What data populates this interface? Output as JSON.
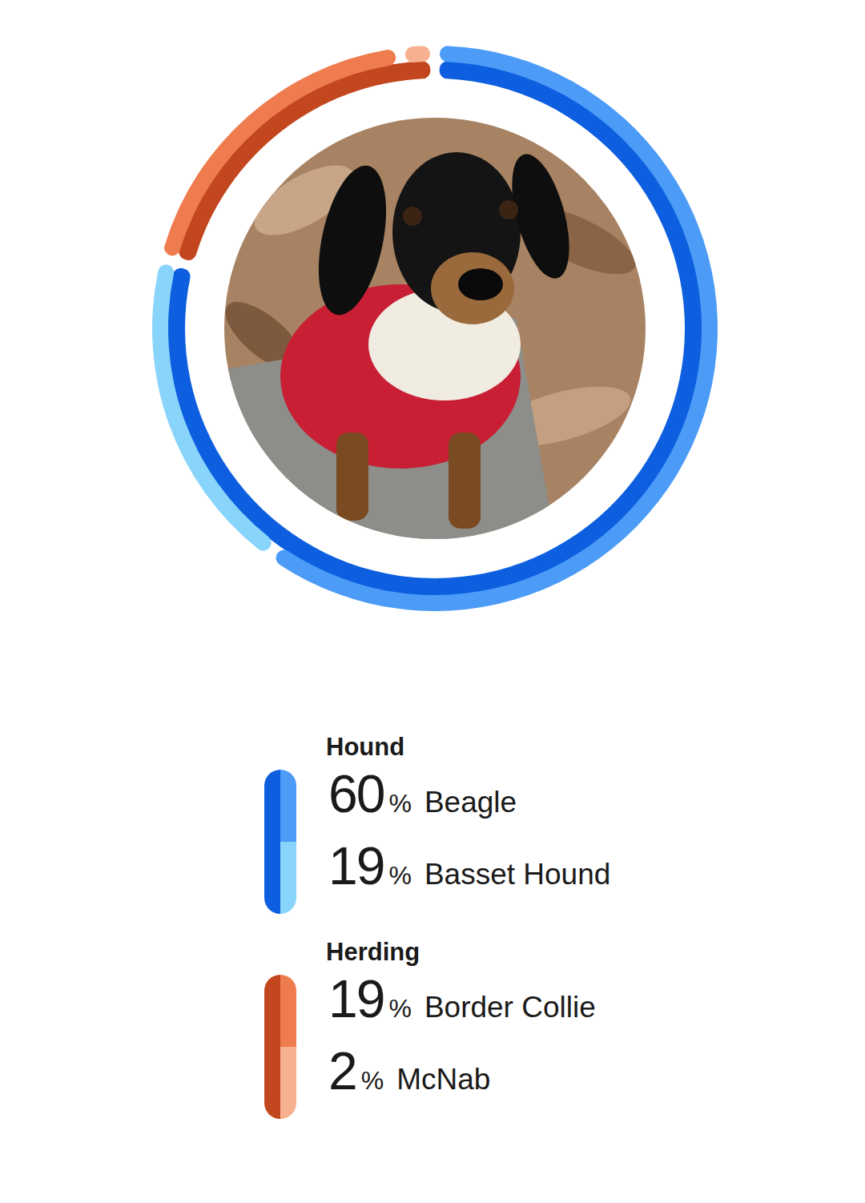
{
  "chart_data": {
    "type": "donut",
    "unit": "%",
    "legend": "bottom",
    "groups": [
      {
        "name": "Hound",
        "color": "#0d5fe0",
        "categories": [
          "Beagle",
          "Basset Hound"
        ],
        "values": [
          60,
          19
        ],
        "colors": [
          "#4b9bf7",
          "#88d4fb"
        ]
      },
      {
        "name": "Herding",
        "color": "#c2461e",
        "categories": [
          "Border Collie",
          "McNab"
        ],
        "values": [
          19,
          2
        ],
        "colors": [
          "#ef7c4e",
          "#f8b190"
        ]
      }
    ]
  }
}
